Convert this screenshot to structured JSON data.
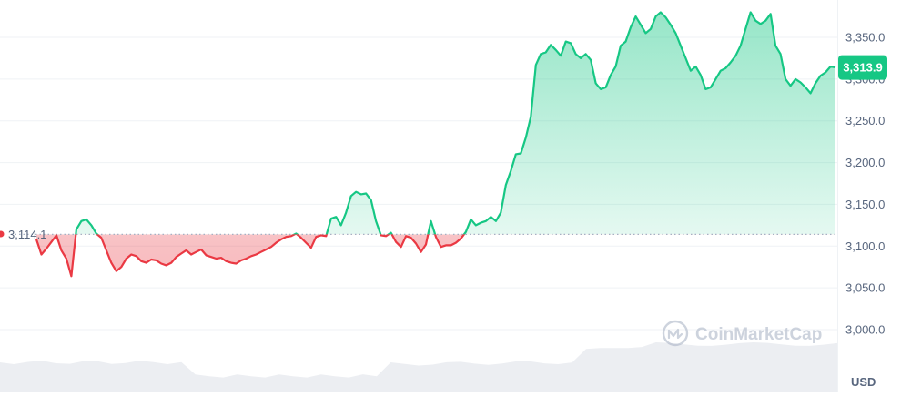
{
  "chart_data": {
    "type": "line",
    "title": "",
    "xlabel": "",
    "ylabel": "",
    "unit_label": "USD",
    "ylim": [
      2975,
      3390
    ],
    "y_ticks": [
      "3,350.0",
      "3,300.0",
      "3,250.0",
      "3,200.0",
      "3,150.0",
      "3,100.0",
      "3,050.0",
      "3,000.0"
    ],
    "y_tick_values": [
      3350,
      3300,
      3250,
      3200,
      3150,
      3100,
      3050,
      3000
    ],
    "grid": true,
    "baseline": {
      "value": 3114.1,
      "label": "3,114.1"
    },
    "current": {
      "value": 3313.9,
      "label": "3,313.9"
    },
    "watermark": "CoinMarketCap",
    "colors": {
      "up": "#16c784",
      "down": "#ea3943",
      "grid": "#eff2f5",
      "text": "#58667e",
      "dotted": "#a6b0c3"
    },
    "series": [
      {
        "values": [
          3108,
          3090,
          3097,
          3105,
          3113,
          3095,
          3085,
          3064,
          3120,
          3130,
          3132,
          3125,
          3115,
          3110,
          3095,
          3080,
          3070,
          3075,
          3085,
          3090,
          3088,
          3082,
          3080,
          3084,
          3083,
          3079,
          3077,
          3080,
          3087,
          3091,
          3095,
          3090,
          3093,
          3096,
          3089,
          3087,
          3085,
          3086,
          3082,
          3080,
          3079,
          3083,
          3085,
          3088,
          3090,
          3093,
          3096,
          3099,
          3104,
          3108,
          3111,
          3112,
          3115,
          3110,
          3104,
          3098,
          3111,
          3113,
          3112,
          3133,
          3135,
          3125,
          3140,
          3160,
          3165,
          3162,
          3163,
          3155,
          3130,
          3113,
          3112,
          3116,
          3105,
          3099,
          3112,
          3110,
          3103,
          3093,
          3102,
          3130,
          3111,
          3099,
          3101,
          3101,
          3104,
          3109,
          3117,
          3132,
          3125,
          3128,
          3130,
          3135,
          3130,
          3140,
          3173,
          3190,
          3210,
          3211,
          3230,
          3255,
          3317,
          3330,
          3332,
          3341,
          3335,
          3328,
          3345,
          3343,
          3330,
          3325,
          3330,
          3323,
          3295,
          3288,
          3290,
          3305,
          3315,
          3340,
          3345,
          3362,
          3375,
          3365,
          3355,
          3360,
          3375,
          3380,
          3374,
          3365,
          3355,
          3340,
          3325,
          3310,
          3315,
          3305,
          3288,
          3290,
          3300,
          3310,
          3313,
          3320,
          3328,
          3340,
          3360,
          3380,
          3370,
          3366,
          3370,
          3378,
          3340,
          3330,
          3300,
          3292,
          3300,
          3296,
          3290,
          3283,
          3295,
          3304,
          3308,
          3315,
          3313.9
        ]
      }
    ]
  }
}
